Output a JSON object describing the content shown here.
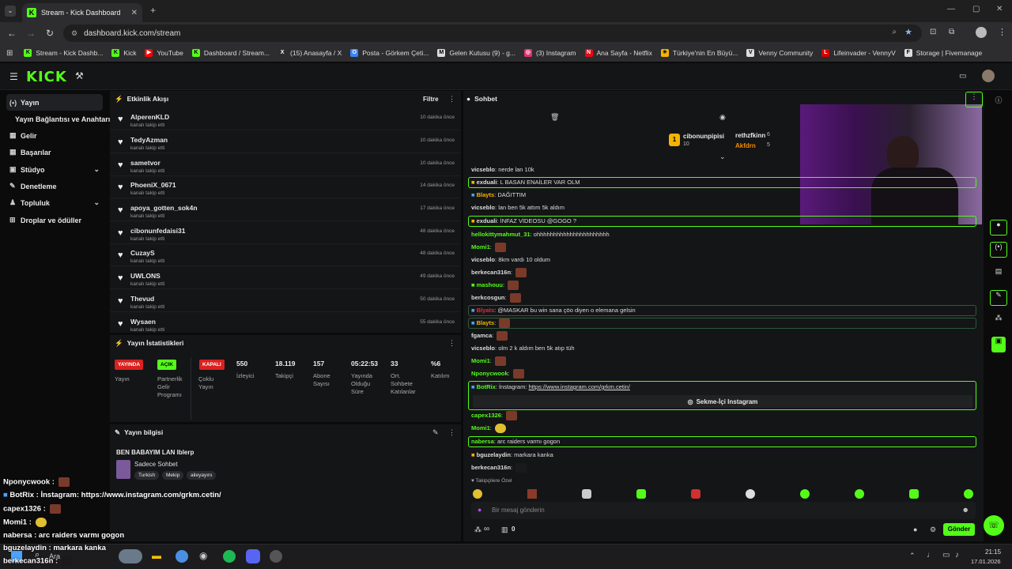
{
  "browser": {
    "tab_title": "Stream - Kick Dashboard",
    "url": "dashboard.kick.com/stream",
    "bookmarks": [
      {
        "label": "Stream - Kick Dashb...",
        "color": "#53fc18",
        "icon": "K"
      },
      {
        "label": "Kick",
        "color": "#53fc18",
        "icon": "K"
      },
      {
        "label": "YouTube",
        "color": "#ff0000",
        "icon": "▶"
      },
      {
        "label": "Dashboard / Stream...",
        "color": "#53fc18",
        "icon": "K"
      },
      {
        "label": "(15) Anasayfa / X",
        "color": "#ffffff",
        "icon": "X"
      },
      {
        "label": "Posta - Görkem Çeti...",
        "color": "#3b82f6",
        "icon": "O"
      },
      {
        "label": "Gelen Kutusu (9) - g...",
        "color": "#dddddd",
        "icon": "M"
      },
      {
        "label": "(3) Instagram",
        "color": "#e1306c",
        "icon": "◎"
      },
      {
        "label": "Ana Sayfa - Netflix",
        "color": "#e50914",
        "icon": "N"
      },
      {
        "label": "Türkiye'nin En Büyü...",
        "color": "#f5b400",
        "icon": "☀"
      },
      {
        "label": "Venny Community",
        "color": "#dddddd",
        "icon": "V"
      },
      {
        "label": "Lifeinvader - VennyV",
        "color": "#d60000",
        "icon": "L"
      },
      {
        "label": "Storage | Fivemanage",
        "color": "#dddddd",
        "icon": "F"
      }
    ]
  },
  "sidebar": {
    "items": [
      {
        "label": "Yayın",
        "icon": "(•)",
        "active": true
      },
      {
        "label": "Yayın Bağlantısı ve Anahtarı",
        "icon": ""
      },
      {
        "label": "Gelir",
        "icon": "▦"
      },
      {
        "label": "Başarılar",
        "icon": "▦"
      },
      {
        "label": "Stüdyo",
        "icon": "▣"
      },
      {
        "label": "Denetleme",
        "icon": "✎"
      },
      {
        "label": "Topluluk",
        "icon": "♟"
      },
      {
        "label": "Droplar ve ödüller",
        "icon": "⊞"
      }
    ]
  },
  "activity": {
    "title": "Etkinlik Akışı",
    "filter": "Filtre",
    "items": [
      {
        "name": "AlperenKLD",
        "sub": "kanalı takip etti",
        "time": "10 dakika önce"
      },
      {
        "name": "TedyAzman",
        "sub": "kanalı takip etti",
        "time": "10 dakika önce"
      },
      {
        "name": "sametvor",
        "sub": "kanalı takip etti",
        "time": "10 dakika önce"
      },
      {
        "name": "PhoeniX_0671",
        "sub": "kanalı takip etti",
        "time": "14 dakika önce"
      },
      {
        "name": "apoya_gotten_sok4n",
        "sub": "kanalı takip etti",
        "time": "17 dakika önce"
      },
      {
        "name": "cibonunfedaisi31",
        "sub": "kanalı takip etti",
        "time": "48 dakika önce"
      },
      {
        "name": "CuzayS",
        "sub": "kanalı takip etti",
        "time": "48 dakika önce"
      },
      {
        "name": "UWLONS",
        "sub": "kanalı takip etti",
        "time": "49 dakika önce"
      },
      {
        "name": "Thevud",
        "sub": "kanalı takip etti",
        "time": "50 dakika önce"
      },
      {
        "name": "Wysaen",
        "sub": "kanalı takip etti",
        "time": "55 dakika önce"
      }
    ]
  },
  "stats": {
    "title": "Yayın İstatistikleri",
    "live_badge": "YAYINDA",
    "live_label": "Yayın",
    "partner_badge": "AÇIK",
    "partner_label": "Partnerlik Gelir Programı",
    "multi_badge": "KAPALI",
    "multi_label": "Çoklu Yayın",
    "viewers": "550",
    "viewers_label": "İzleyici",
    "followers": "18.119",
    "followers_label": "Takipçi",
    "subs": "157",
    "subs_label": "Abone Sayısı",
    "duration": "05:22:53",
    "duration_label": "Yayında Olduğu Süre",
    "avg_chatters": "33",
    "avg_chatters_label": "Ort. Sohbete Katılanlar",
    "participation": "%6",
    "participation_label": "Katılım"
  },
  "info": {
    "title": "Yayın bilgisi",
    "stream_title": "BEN BABAYIM LAN Iblerp",
    "category": "Sadece Sohbet",
    "tags": [
      "Turkish",
      "Mekip",
      "aileyayını"
    ]
  },
  "chat": {
    "title": "Sohbet",
    "top_gifters": [
      {
        "name": "cibonunpipisi",
        "count": "10"
      },
      {
        "name": "rethzfkinn",
        "count": "6"
      },
      {
        "name": "Akfdrn",
        "count": "5"
      }
    ],
    "messages": [
      {
        "user": "vicseblo",
        "text": "nerde lan 10k",
        "color": "#e8e8e8",
        "hl": false
      },
      {
        "user": "exduali",
        "text": "L BASAN ENAİLER VAR OLM",
        "color": "#e8e8e8",
        "hl": true
      },
      {
        "user": "Blayts",
        "text": "DAĞITTIM",
        "color": "#f5b400",
        "hl": false
      },
      {
        "user": "vicseblo",
        "text": "lan ben 5k attım 5k aldım",
        "color": "#e8e8e8",
        "hl": false
      },
      {
        "user": "exduali",
        "text": "İNFAZ VİDEOSU @GOGO ?",
        "color": "#e8e8e8",
        "hl": true
      },
      {
        "user": "hellokittymahmut_31",
        "text": "ohhhhhhhhhhhhhhhhhhhhhh",
        "color": "#e8e8e8",
        "hl": false
      },
      {
        "user": "Momi1",
        "text": "",
        "color": "#53fc18",
        "hl": false
      },
      {
        "user": "vicseblo",
        "text": "8km vardı 10 oldum",
        "color": "#e8e8e8",
        "hl": false
      },
      {
        "user": "berkecan316n",
        "text": "",
        "color": "#e8e8e8",
        "hl": false
      },
      {
        "user": "mashouu",
        "text": "",
        "color": "#53fc18",
        "hl": false
      },
      {
        "user": "berkcosgun",
        "text": "",
        "color": "#e8e8e8",
        "hl": false
      },
      {
        "user": "Blyats",
        "text": "@MASKAR bu win sana çöo diyen o elemana gelsin",
        "color": "#e03030",
        "hl": true
      },
      {
        "user": "Blayts",
        "text": "",
        "color": "#f5b400",
        "hl": true
      },
      {
        "user": "fgamca",
        "text": "",
        "color": "#e8e8e8",
        "hl": false
      },
      {
        "user": "vicseblo",
        "text": "olm 2 k aldım ben 5k atıp tüh",
        "color": "#e8e8e8",
        "hl": false
      },
      {
        "user": "Momi1",
        "text": "",
        "color": "#53fc18",
        "hl": false
      },
      {
        "user": "Nponycwook",
        "text": "",
        "color": "#53fc18",
        "hl": false
      }
    ],
    "botrix": {
      "user": "BotRix",
      "text": "İnstagram:",
      "link": "https://www.instagram.com/grkm.cetin/",
      "button": "Sekme-İçi Instagram"
    },
    "messages2": [
      {
        "user": "capex1326",
        "text": "",
        "color": "#53fc18",
        "hl": false
      },
      {
        "user": "Momi1",
        "text": "",
        "color": "#53fc18",
        "hl": false
      },
      {
        "user": "nabersa",
        "text": "arc raiders varmı gogon",
        "color": "#53fc18",
        "hl": true
      },
      {
        "user": "bguzelaydin",
        "text": "markara kanka",
        "color": "#e8e8e8",
        "hl": false
      },
      {
        "user": "berkecan316n",
        "text": "",
        "color": "#e8e8e8",
        "hl": false
      }
    ],
    "followers_only": "Takipçilere Özel",
    "input_placeholder": "Bir mesaj gönderin",
    "points": "∞",
    "counter": "0",
    "send": "Gönder"
  },
  "overlay": [
    {
      "user": "Nponycwook",
      "text": ""
    },
    {
      "user": "BotRix",
      "text": "İnstagram: https://www.instagram.com/grkm.cetin/"
    },
    {
      "user": "capex1326",
      "text": ""
    },
    {
      "user": "Momi1",
      "text": ""
    },
    {
      "user": "nabersa",
      "text": "arc raiders varmı gogon"
    },
    {
      "user": "bguzelaydin",
      "text": "markara kanka"
    },
    {
      "user": "berkecan316n",
      "text": ""
    }
  ],
  "taskbar": {
    "search": "Ara",
    "time": "21:15",
    "date": "17.01.2026"
  }
}
